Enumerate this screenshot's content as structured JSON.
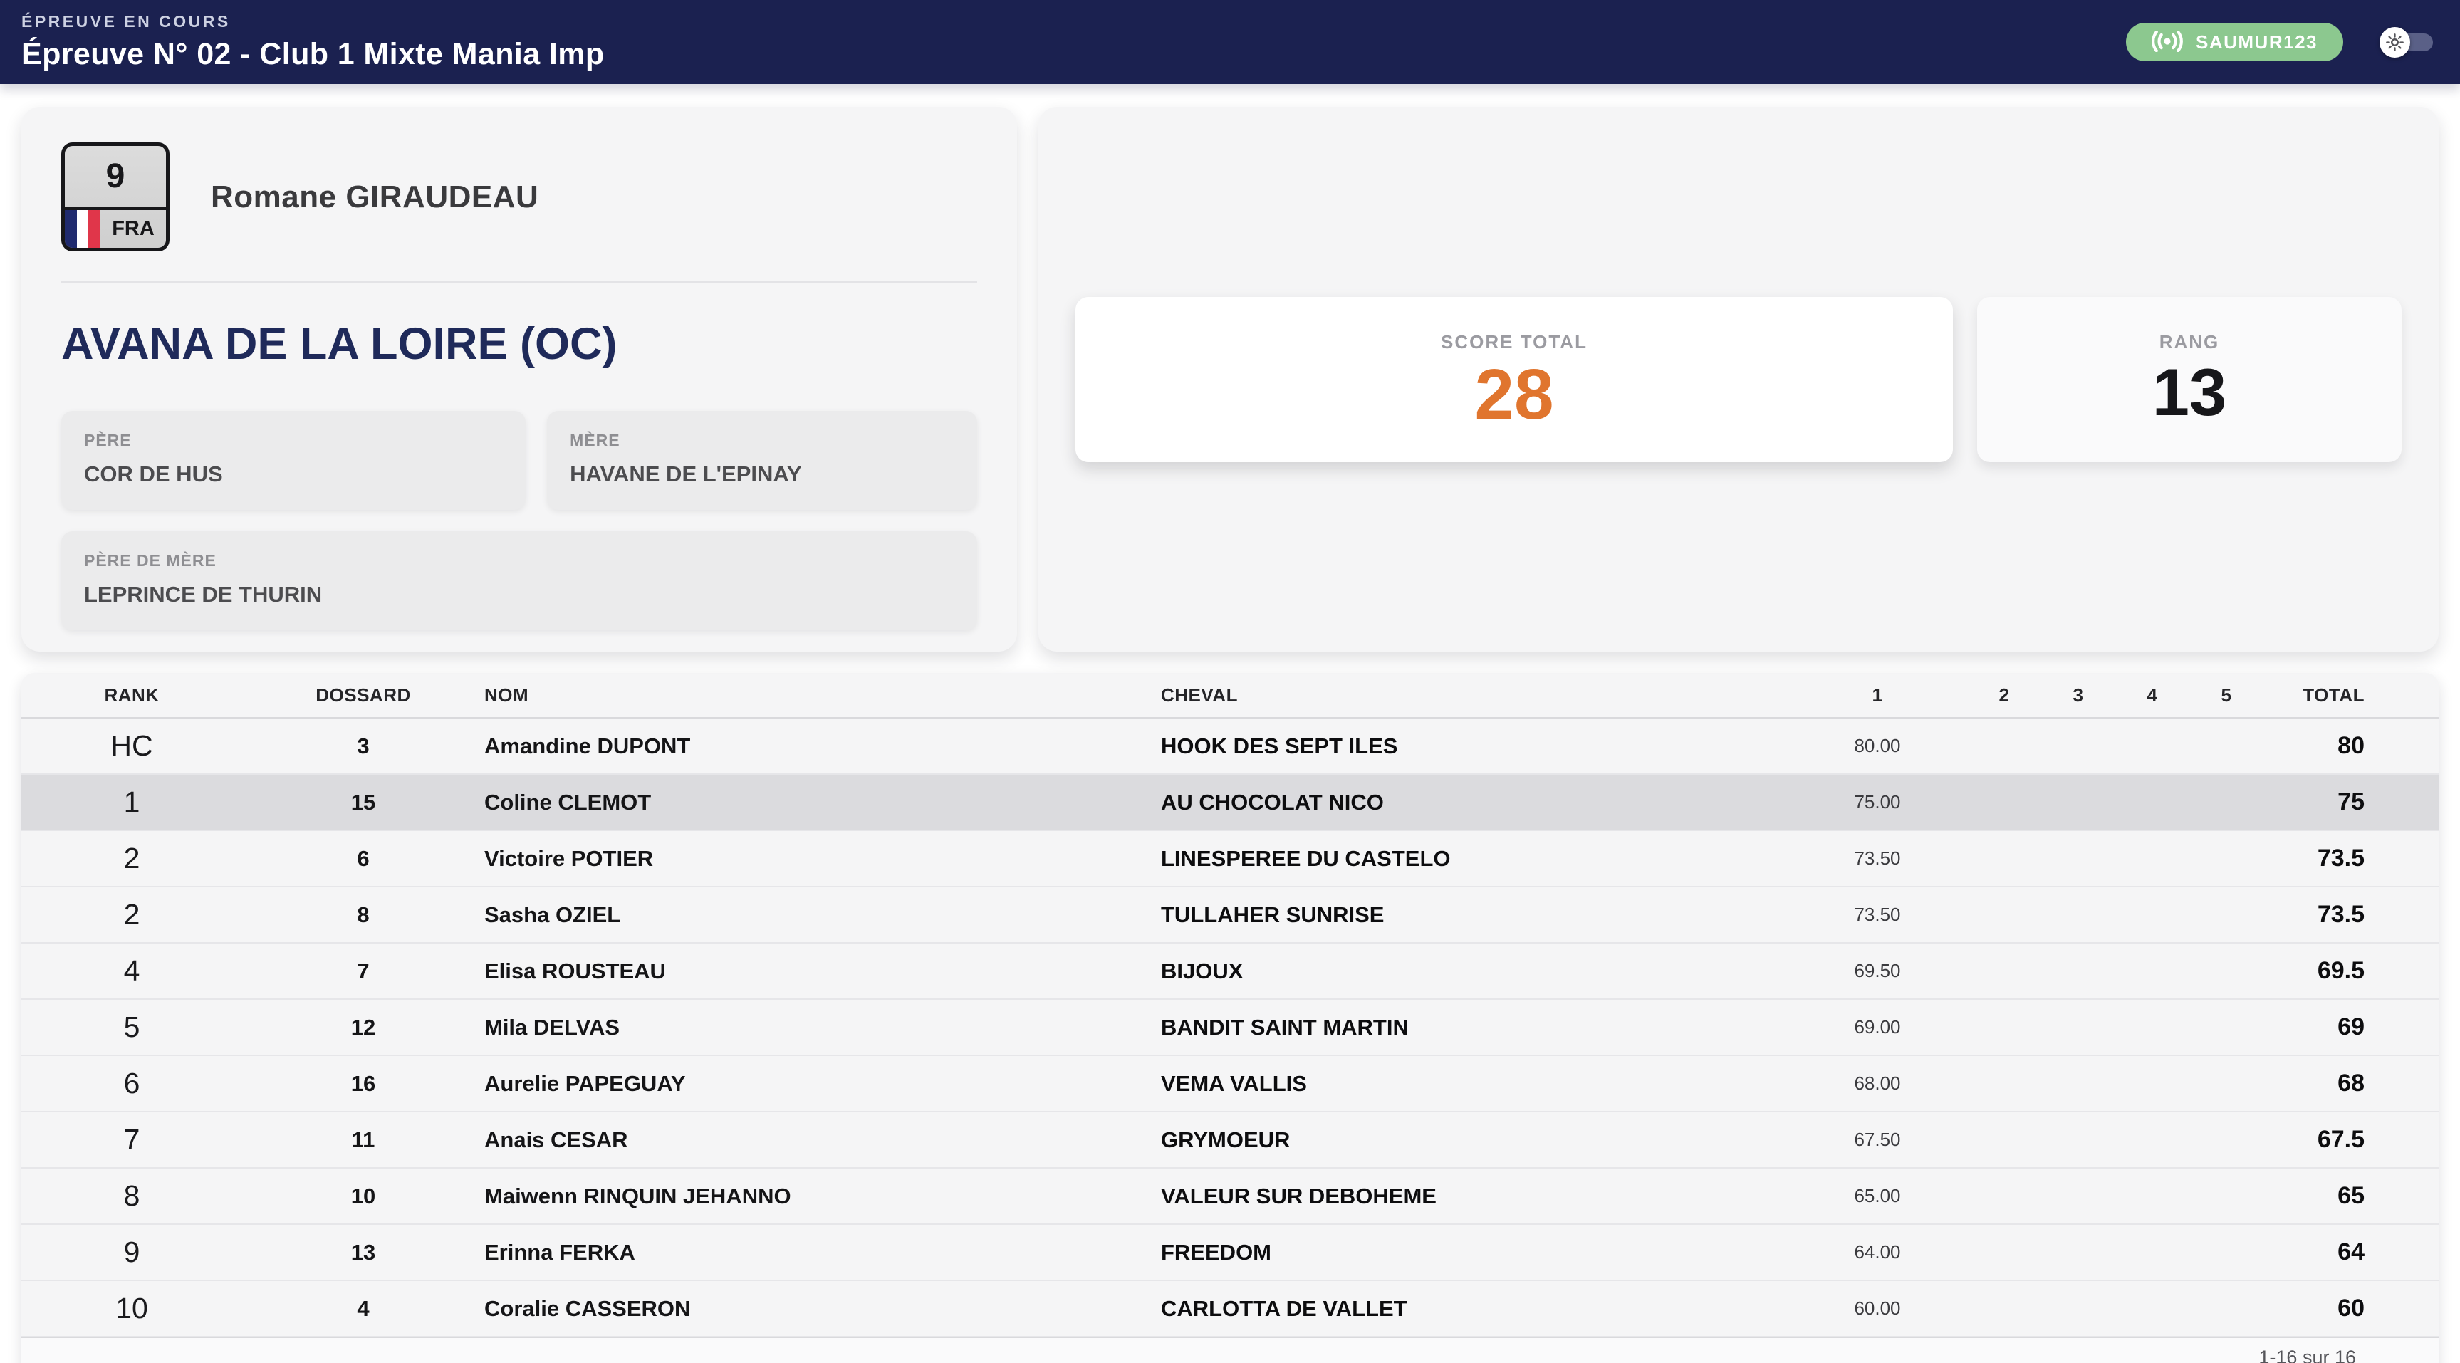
{
  "colors": {
    "navy": "#1b2150",
    "green": "#8cc88f",
    "orange": "#e0752e",
    "card": "#f5f5f6",
    "box": "#ebebec",
    "highlight": "#dbdbde"
  },
  "header": {
    "kicker": "ÉPREUVE EN COURS",
    "title": "Épreuve N° 02 - Club 1 Mixte Mania Imp",
    "badge_label": "SAUMUR123",
    "badge_icon": "broadcast-icon",
    "toggle_icon": "sun-icon"
  },
  "rider": {
    "bib": "9",
    "country": "FRA",
    "name": "Romane GIRAUDEAU",
    "horse": "AVANA DE LA LOIRE (OC)",
    "pedigree": {
      "sire": {
        "label": "PÈRE",
        "value": "COR DE HUS"
      },
      "dam": {
        "label": "MÈRE",
        "value": "HAVANE DE L'EPINAY"
      },
      "dam_sire": {
        "label": "PÈRE DE MÈRE",
        "value": "LEPRINCE DE THURIN"
      }
    }
  },
  "score_panel": {
    "score_label": "SCORE TOTAL",
    "score_value": "28",
    "rank_label": "RANG",
    "rank_value": "13"
  },
  "table": {
    "columns": [
      "RANK",
      "DOSSARD",
      "NOM",
      "CHEVAL",
      "1",
      "2",
      "3",
      "4",
      "5",
      "TOTAL"
    ],
    "rows": [
      {
        "rank": "HC",
        "dossard": "3",
        "nom": "Amandine DUPONT",
        "cheval": "HOOK DES SEPT ILES",
        "scores": [
          "80.00",
          "",
          "",
          "",
          ""
        ],
        "total": "80",
        "highlight": false
      },
      {
        "rank": "1",
        "dossard": "15",
        "nom": "Coline CLEMOT",
        "cheval": "AU CHOCOLAT NICO",
        "scores": [
          "75.00",
          "",
          "",
          "",
          ""
        ],
        "total": "75",
        "highlight": true
      },
      {
        "rank": "2",
        "dossard": "6",
        "nom": "Victoire POTIER",
        "cheval": "LINESPEREE DU CASTELO",
        "scores": [
          "73.50",
          "",
          "",
          "",
          ""
        ],
        "total": "73.5",
        "highlight": false
      },
      {
        "rank": "2",
        "dossard": "8",
        "nom": "Sasha OZIEL",
        "cheval": "TULLAHER SUNRISE",
        "scores": [
          "73.50",
          "",
          "",
          "",
          ""
        ],
        "total": "73.5",
        "highlight": false
      },
      {
        "rank": "4",
        "dossard": "7",
        "nom": "Elisa ROUSTEAU",
        "cheval": "BIJOUX",
        "scores": [
          "69.50",
          "",
          "",
          "",
          ""
        ],
        "total": "69.5",
        "highlight": false
      },
      {
        "rank": "5",
        "dossard": "12",
        "nom": "Mila DELVAS",
        "cheval": "BANDIT SAINT MARTIN",
        "scores": [
          "69.00",
          "",
          "",
          "",
          ""
        ],
        "total": "69",
        "highlight": false
      },
      {
        "rank": "6",
        "dossard": "16",
        "nom": "Aurelie PAPEGUAY",
        "cheval": "VEMA VALLIS",
        "scores": [
          "68.00",
          "",
          "",
          "",
          ""
        ],
        "total": "68",
        "highlight": false
      },
      {
        "rank": "7",
        "dossard": "11",
        "nom": "Anais CESAR",
        "cheval": "GRYMOEUR",
        "scores": [
          "67.50",
          "",
          "",
          "",
          ""
        ],
        "total": "67.5",
        "highlight": false
      },
      {
        "rank": "8",
        "dossard": "10",
        "nom": "Maiwenn RINQUIN JEHANNO",
        "cheval": "VALEUR SUR DEBOHEME",
        "scores": [
          "65.00",
          "",
          "",
          "",
          ""
        ],
        "total": "65",
        "highlight": false
      },
      {
        "rank": "9",
        "dossard": "13",
        "nom": "Erinna FERKA",
        "cheval": "FREEDOM",
        "scores": [
          "64.00",
          "",
          "",
          "",
          ""
        ],
        "total": "64",
        "highlight": false
      },
      {
        "rank": "10",
        "dossard": "4",
        "nom": "Coralie CASSERON",
        "cheval": "CARLOTTA DE VALLET",
        "scores": [
          "60.00",
          "",
          "",
          "",
          ""
        ],
        "total": "60",
        "highlight": false
      }
    ],
    "footer": "1-16 sur 16"
  }
}
